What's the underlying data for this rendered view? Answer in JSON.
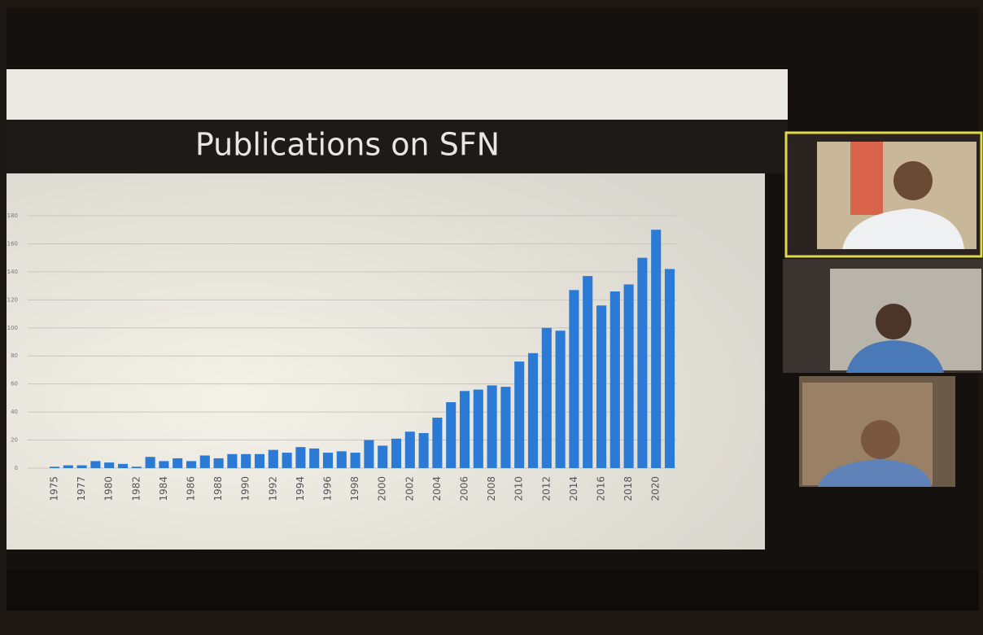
{
  "chart_data": {
    "type": "bar",
    "title": "Publications on SFN",
    "categories": [
      "1975",
      null,
      "1977",
      null,
      "1980",
      null,
      "1982",
      null,
      "1984",
      null,
      "1986",
      null,
      "1988",
      null,
      "1990",
      null,
      "1992",
      null,
      "1994",
      null,
      "1996",
      null,
      "1998",
      null,
      "2000",
      null,
      "2002",
      null,
      "2004",
      null,
      "2006",
      null,
      "2008",
      null,
      "2010",
      null,
      "2012",
      null,
      "2014",
      null,
      "2016",
      null,
      "2018",
      null,
      "2020",
      null
    ],
    "values": [
      1,
      2,
      2,
      5,
      4,
      3,
      1,
      8,
      5,
      7,
      5,
      9,
      7,
      10,
      10,
      10,
      13,
      11,
      15,
      14,
      11,
      12,
      11,
      20,
      16,
      21,
      26,
      25,
      36,
      47,
      55,
      56,
      59,
      58,
      76,
      82,
      100,
      98,
      127,
      137,
      116,
      126,
      131,
      150,
      170,
      142
    ],
    "color": "#2b7bd6",
    "ylim": [
      0,
      180
    ],
    "yticks": [
      0,
      20,
      40,
      60,
      80,
      100,
      120,
      140,
      160,
      180
    ],
    "grid": true
  }
}
